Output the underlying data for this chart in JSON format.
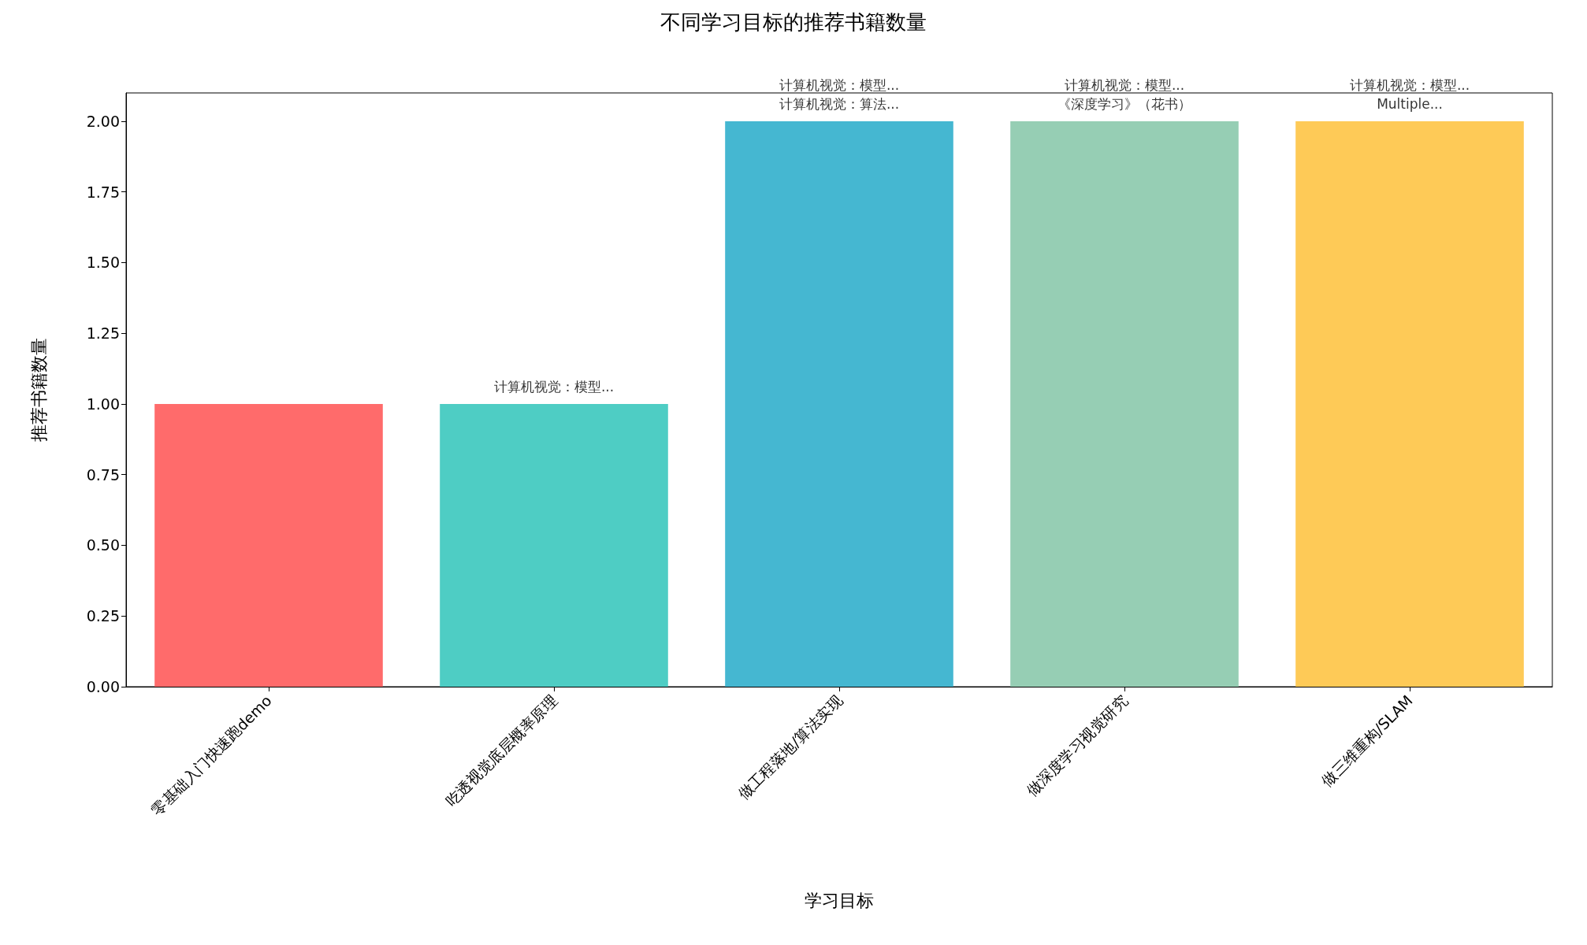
{
  "chart_data": {
    "type": "bar",
    "title": "不同学习目标的推荐书籍数量",
    "xlabel": "学习目标",
    "ylabel": "推荐书籍数量",
    "categories": [
      "零基础入门快速跑demo",
      "吃透视觉底层概率原理",
      "做工程落地/算法实现",
      "做深度学习视觉研究",
      "做三维重构/SLAM"
    ],
    "values": [
      1,
      1,
      2,
      2,
      2
    ],
    "colors": [
      "#ff6b6b",
      "#4ecdc4",
      "#45b7d1",
      "#96ceb4",
      "#feca57"
    ],
    "ylim": [
      0,
      2.1
    ],
    "yticks": [
      {
        "value": 0,
        "label": "0.00"
      },
      {
        "value": 0.25,
        "label": "0.25"
      },
      {
        "value": 0.5,
        "label": "0.50"
      },
      {
        "value": 0.75,
        "label": "0.75"
      },
      {
        "value": 1,
        "label": "1.00"
      },
      {
        "value": 1.25,
        "label": "1.25"
      },
      {
        "value": 1.5,
        "label": "1.50"
      },
      {
        "value": 1.75,
        "label": "1.75"
      },
      {
        "value": 2,
        "label": "2.00"
      }
    ],
    "annotations": [
      {
        "text": "计算机视觉：模型...",
        "x": "吃透视觉底层概率原理",
        "y": 1
      },
      {
        "text": "计算机视觉：模型...\n计算机视觉：算法...",
        "x": "做工程落地/算法实现",
        "y": 2
      },
      {
        "text": "计算机视觉：模型...\n《深度学习》（花书）",
        "x": "做深度学习视觉研究",
        "y": 2
      },
      {
        "text": "计算机视觉：模型...\nMultiple...",
        "x": "做三维重构/SLAM",
        "y": 2
      }
    ],
    "data_labels": false
  }
}
